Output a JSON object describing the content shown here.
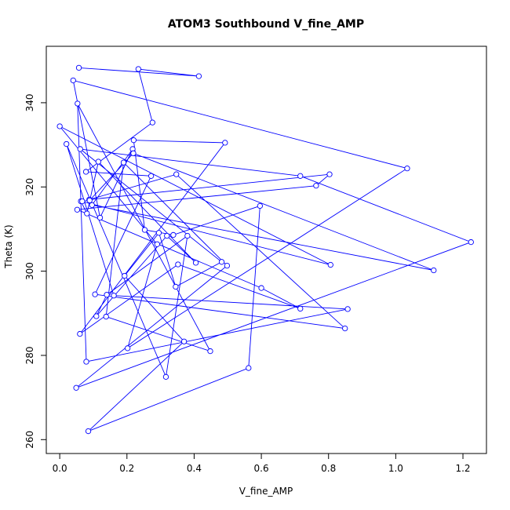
{
  "chart_data": {
    "type": "line",
    "title": "ATOM3 Southbound V_fine_AMP",
    "xlabel": "V_fine_AMP",
    "ylabel": "Theta (K)",
    "xlim": [
      -0.04,
      1.27
    ],
    "ylim": [
      256.7,
      353.4
    ],
    "xticks": [
      0.0,
      0.2,
      0.4,
      0.6,
      0.8,
      1.0,
      1.2
    ],
    "xtick_labels": [
      "0.0",
      "0.2",
      "0.4",
      "0.6",
      "0.8",
      "1.0",
      "1.2"
    ],
    "yticks": [
      260,
      280,
      300,
      320,
      340
    ],
    "ytick_labels": [
      "260",
      "280",
      "300",
      "320",
      "340"
    ],
    "grid": false,
    "legend": false,
    "series": [
      {
        "style": "line+open-circle",
        "color": "#0000ff",
        "x": [
          0.057,
          0.414,
          0.234,
          0.276,
          0.078,
          0.272,
          0.105,
          0.849,
          0.347,
          0.088,
          0.803,
          0.763,
          0.052,
          0.6,
          0.716,
          0.352,
          0.06,
          0.492,
          0.22,
          0.253,
          0.338,
          0.596,
          0.562,
          0.085,
          0.37,
          0.193,
          0.295,
          0.345,
          0.482,
          0.061,
          0.716,
          1.224,
          0.049,
          0.498,
          0.19,
          0.138,
          0.448,
          0.053,
          0.079,
          0.857,
          0.161,
          0.02,
          0.316,
          0.38,
          0.14,
          0.109,
          0.319,
          0.405,
          0.115,
          0.081,
          0.063,
          0.806,
          0.0,
          0.29,
          0.202,
          1.034,
          0.04,
          0.12,
          0.217,
          0.096,
          1.113,
          0.219,
          0.089,
          0.067
        ],
        "y": [
          348.3,
          346.3,
          348.0,
          335.3,
          323.6,
          322.6,
          294.5,
          286.4,
          323.0,
          317.0,
          323.0,
          320.3,
          314.6,
          296.0,
          291.1,
          301.6,
          285.1,
          330.5,
          331.1,
          309.8,
          308.6,
          315.5,
          277.0,
          262.0,
          283.3,
          298.9,
          309.1,
          296.3,
          302.2,
          329.0,
          322.6,
          306.9,
          272.3,
          301.3,
          325.8,
          289.2,
          281.0,
          339.8,
          278.5,
          291.0,
          294.2,
          330.2,
          274.9,
          308.4,
          294.4,
          289.3,
          308.4,
          302.0,
          326.0,
          313.7,
          316.6,
          301.5,
          334.4,
          306.4,
          281.7,
          324.4,
          345.3,
          312.7,
          329.0,
          315.7,
          300.2,
          328.0,
          316.8,
          316.6
        ]
      }
    ]
  }
}
